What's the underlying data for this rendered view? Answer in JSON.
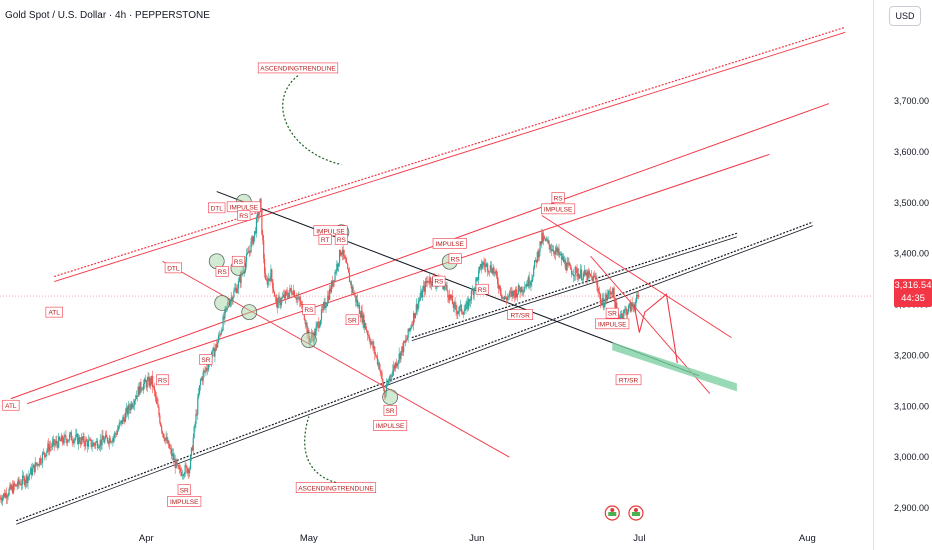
{
  "header": {
    "title": "Gold Spot / U.S. Dollar · 4h · PEPPERSTONE",
    "currency": "USD"
  },
  "price_tag": {
    "price": "3,316.54",
    "countdown": "44:35"
  },
  "colors": {
    "up": "#26a69a",
    "down": "#ef5350",
    "line_red": "#f23645",
    "line_black": "#131722",
    "curve": "#1b5e20",
    "zone": "#7fd1a4",
    "circle_fill": "#a5d6a7"
  },
  "icons": [
    "alert-icon",
    "alert-icon"
  ],
  "chart_data": {
    "type": "candlestick",
    "title": "Gold Spot / U.S. Dollar · 4h · PEPPERSTONE",
    "y_axis": {
      "ticks": [
        "2,900.00",
        "3,000.00",
        "3,100.00",
        "3,200.00",
        "3,300.00",
        "3,400.00",
        "3,500.00",
        "3,600.00",
        "3,700.00"
      ],
      "tick_values": [
        2900,
        3000,
        3100,
        3200,
        3300,
        3400,
        3500,
        3600,
        3700
      ],
      "range": [
        2860,
        3810
      ]
    },
    "x_axis": {
      "ticks": [
        "Apr",
        "May",
        "Jun",
        "Jul",
        "Aug"
      ],
      "tick_dates": [
        "2025-04-01",
        "2025-05-01",
        "2025-06-01",
        "2025-07-01",
        "2025-08-01"
      ],
      "range": [
        "2025-03-05",
        "2025-08-12"
      ]
    },
    "series": [
      {
        "type": "approx-close-path",
        "points": [
          [
            "2025-03-05",
            2920
          ],
          [
            "2025-03-10",
            2960
          ],
          [
            "2025-03-14",
            3020
          ],
          [
            "2025-03-18",
            3040
          ],
          [
            "2025-03-22",
            3025
          ],
          [
            "2025-03-26",
            3040
          ],
          [
            "2025-03-28",
            3080
          ],
          [
            "2025-03-31",
            3140
          ],
          [
            "2025-04-02",
            3150
          ],
          [
            "2025-04-04",
            3050
          ],
          [
            "2025-04-07",
            2970
          ],
          [
            "2025-04-09",
            2980
          ],
          [
            "2025-04-11",
            3150
          ],
          [
            "2025-04-14",
            3220
          ],
          [
            "2025-04-16",
            3300
          ],
          [
            "2025-04-18",
            3340
          ],
          [
            "2025-04-21",
            3440
          ],
          [
            "2025-04-22",
            3500
          ],
          [
            "2025-04-23",
            3340
          ],
          [
            "2025-04-24",
            3360
          ],
          [
            "2025-04-25",
            3300
          ],
          [
            "2025-04-28",
            3330
          ],
          [
            "2025-04-30",
            3290
          ],
          [
            "2025-05-01",
            3230
          ],
          [
            "2025-05-02",
            3240
          ],
          [
            "2025-05-05",
            3330
          ],
          [
            "2025-05-07",
            3410
          ],
          [
            "2025-05-09",
            3330
          ],
          [
            "2025-05-12",
            3240
          ],
          [
            "2025-05-14",
            3180
          ],
          [
            "2025-05-15",
            3120
          ],
          [
            "2025-05-16",
            3160
          ],
          [
            "2025-05-19",
            3230
          ],
          [
            "2025-05-21",
            3300
          ],
          [
            "2025-05-23",
            3350
          ],
          [
            "2025-05-26",
            3340
          ],
          [
            "2025-05-28",
            3290
          ],
          [
            "2025-05-30",
            3290
          ],
          [
            "2025-06-02",
            3380
          ],
          [
            "2025-06-04",
            3370
          ],
          [
            "2025-06-06",
            3310
          ],
          [
            "2025-06-09",
            3330
          ],
          [
            "2025-06-11",
            3350
          ],
          [
            "2025-06-13",
            3430
          ],
          [
            "2025-06-16",
            3400
          ],
          [
            "2025-06-18",
            3370
          ],
          [
            "2025-06-20",
            3360
          ],
          [
            "2025-06-23",
            3350
          ],
          [
            "2025-06-24",
            3300
          ],
          [
            "2025-06-26",
            3330
          ],
          [
            "2025-06-27",
            3275
          ],
          [
            "2025-06-30",
            3300
          ],
          [
            "2025-07-01",
            3316.54
          ]
        ]
      }
    ],
    "current_price": 3316.54,
    "annotations": [
      {
        "text": "ASCENDINGTRENDLINE",
        "date": "2025-04-29",
        "price": 3765
      },
      {
        "text": "ASCENDINGTRENDLINE",
        "date": "2025-05-06",
        "price": 2940
      },
      {
        "text": "DTL",
        "date": "2025-04-14",
        "price": 3490
      },
      {
        "text": "DTL",
        "date": "2025-04-06",
        "price": 3372
      },
      {
        "text": "ATL",
        "date": "2025-03-15",
        "price": 3285
      },
      {
        "text": "ATL",
        "date": "2025-03-07",
        "price": 3102
      },
      {
        "text": "IMPULSE",
        "date": "2025-04-19",
        "price": 3492
      },
      {
        "text": "RS",
        "date": "2025-04-19",
        "price": 3475
      },
      {
        "text": "IMPULSE",
        "date": "2025-05-05",
        "price": 3445
      },
      {
        "text": "RT",
        "date": "2025-05-04",
        "price": 3428
      },
      {
        "text": "RS",
        "date": "2025-05-07",
        "price": 3428
      },
      {
        "text": "RS",
        "date": "2025-04-15",
        "price": 3365
      },
      {
        "text": "RS",
        "date": "2025-04-18",
        "price": 3385
      },
      {
        "text": "RS",
        "date": "2025-04-04",
        "price": 3152
      },
      {
        "text": "SR",
        "date": "2025-04-12",
        "price": 3192
      },
      {
        "text": "RS",
        "date": "2025-05-01",
        "price": 3290
      },
      {
        "text": "SR",
        "date": "2025-05-09",
        "price": 3270
      },
      {
        "text": "SR",
        "date": "2025-05-16",
        "price": 3092
      },
      {
        "text": "IMPULSE",
        "date": "2025-05-16",
        "price": 3062
      },
      {
        "text": "IMPULSE",
        "date": "2025-05-27",
        "price": 3420
      },
      {
        "text": "RS",
        "date": "2025-05-28",
        "price": 3390
      },
      {
        "text": "RS",
        "date": "2025-05-25",
        "price": 3346
      },
      {
        "text": "RS",
        "date": "2025-06-02",
        "price": 3330
      },
      {
        "text": "RT/SR",
        "date": "2025-06-09",
        "price": 3280
      },
      {
        "text": "RS",
        "date": "2025-06-16",
        "price": 3510
      },
      {
        "text": "IMPULSE",
        "date": "2025-06-16",
        "price": 3488
      },
      {
        "text": "SR",
        "date": "2025-06-26",
        "price": 3283
      },
      {
        "text": "IMPULSE",
        "date": "2025-06-26",
        "price": 3262
      },
      {
        "text": "RT/SR",
        "date": "2025-06-29",
        "price": 3152
      },
      {
        "text": "SR",
        "date": "2025-04-08",
        "price": 2936
      },
      {
        "text": "IMPULSE",
        "date": "2025-04-08",
        "price": 2913
      }
    ]
  }
}
